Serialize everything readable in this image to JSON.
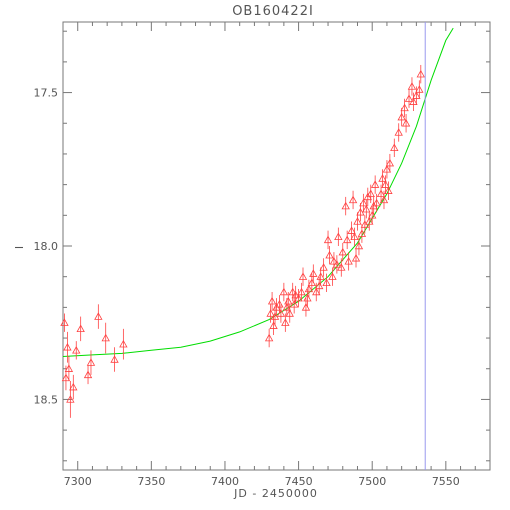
{
  "chart_data": {
    "type": "scatter",
    "title": "OB160422I",
    "xlabel": "JD - 2450000",
    "ylabel": "I",
    "xlim": [
      7290,
      7580
    ],
    "ylim": [
      18.73,
      17.27
    ],
    "y_inverted": true,
    "x_ticks": [
      7300,
      7350,
      7400,
      7450,
      7500,
      7550
    ],
    "x_tick_labels": [
      "7300",
      "7350",
      "7400",
      "7450",
      "7500",
      "7550"
    ],
    "y_ticks": [
      17.5,
      18.0,
      18.5
    ],
    "y_tick_labels": [
      "17.5",
      "18.0",
      "18.5"
    ],
    "grid": false,
    "marker": "triangle",
    "colors": {
      "points": "#ff4040",
      "model": "#00dd00",
      "marker_line": "#9999ee",
      "axes": "#777777"
    },
    "reference_line_x": 7536,
    "model_curve": {
      "name": "",
      "x": [
        7290,
        7310,
        7330,
        7350,
        7370,
        7390,
        7410,
        7430,
        7450,
        7470,
        7490,
        7510,
        7520,
        7530,
        7540,
        7550,
        7555
      ],
      "y": [
        18.36,
        18.355,
        18.35,
        18.34,
        18.33,
        18.31,
        18.28,
        18.24,
        18.18,
        18.1,
        17.99,
        17.83,
        17.73,
        17.61,
        17.46,
        17.33,
        17.29
      ]
    },
    "series": [
      {
        "name": "",
        "x": [
          7291,
          7292,
          7293,
          7294,
          7295,
          7297,
          7299,
          7302,
          7307,
          7309,
          7314,
          7319,
          7325,
          7331,
          7430,
          7431,
          7432,
          7433,
          7434,
          7435,
          7437,
          7438,
          7440,
          7441,
          7442,
          7443,
          7444,
          7446,
          7447,
          7448,
          7450,
          7452,
          7453,
          7455,
          7456,
          7457,
          7459,
          7460,
          7462,
          7464,
          7465,
          7467,
          7469,
          7470,
          7471,
          7473,
          7474,
          7476,
          7477,
          7479,
          7480,
          7482,
          7483,
          7484,
          7486,
          7487,
          7488,
          7489,
          7490,
          7491,
          7492,
          7493,
          7494,
          7495,
          7496,
          7497,
          7498,
          7499,
          7500,
          7501,
          7502,
          7503,
          7506,
          7507,
          7508,
          7509,
          7510,
          7511,
          7512,
          7515,
          7518,
          7520,
          7522,
          7523,
          7525,
          7527,
          7528,
          7530,
          7532,
          7533
        ],
        "y": [
          18.25,
          18.43,
          18.33,
          18.4,
          18.5,
          18.46,
          18.34,
          18.27,
          18.42,
          18.38,
          18.23,
          18.3,
          18.37,
          18.32,
          18.3,
          18.22,
          18.18,
          18.26,
          18.23,
          18.2,
          18.19,
          18.22,
          18.15,
          18.25,
          18.2,
          18.18,
          18.22,
          18.15,
          18.19,
          18.16,
          18.17,
          18.15,
          18.1,
          18.2,
          18.17,
          18.14,
          18.12,
          18.09,
          18.15,
          18.13,
          18.1,
          18.07,
          18.12,
          17.98,
          18.03,
          18.1,
          18.05,
          18.06,
          17.97,
          18.07,
          18.02,
          17.87,
          17.98,
          18.05,
          17.95,
          17.85,
          17.97,
          18.04,
          17.92,
          18.0,
          17.89,
          17.96,
          17.86,
          17.93,
          17.88,
          17.84,
          17.92,
          17.83,
          17.9,
          17.87,
          17.8,
          17.86,
          17.83,
          17.78,
          17.85,
          17.8,
          17.75,
          17.82,
          17.73,
          17.68,
          17.63,
          17.58,
          17.55,
          17.6,
          17.52,
          17.48,
          17.53,
          17.51,
          17.49,
          17.44
        ],
        "err": [
          0.03,
          0.04,
          0.05,
          0.04,
          0.06,
          0.04,
          0.03,
          0.04,
          0.03,
          0.04,
          0.04,
          0.05,
          0.04,
          0.05,
          0.03,
          0.03,
          0.03,
          0.03,
          0.03,
          0.03,
          0.03,
          0.03,
          0.03,
          0.03,
          0.03,
          0.03,
          0.03,
          0.03,
          0.03,
          0.03,
          0.03,
          0.03,
          0.03,
          0.03,
          0.03,
          0.03,
          0.03,
          0.03,
          0.03,
          0.03,
          0.03,
          0.03,
          0.03,
          0.03,
          0.03,
          0.03,
          0.03,
          0.03,
          0.03,
          0.03,
          0.03,
          0.03,
          0.03,
          0.03,
          0.03,
          0.03,
          0.03,
          0.03,
          0.03,
          0.03,
          0.03,
          0.03,
          0.03,
          0.03,
          0.03,
          0.03,
          0.03,
          0.03,
          0.03,
          0.03,
          0.03,
          0.03,
          0.03,
          0.03,
          0.03,
          0.03,
          0.03,
          0.03,
          0.03,
          0.03,
          0.03,
          0.03,
          0.03,
          0.03,
          0.03,
          0.03,
          0.03,
          0.03,
          0.03,
          0.03
        ]
      }
    ]
  }
}
